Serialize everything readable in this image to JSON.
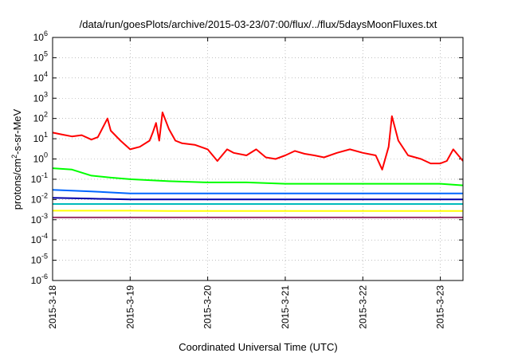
{
  "chart_data": {
    "type": "line",
    "title": "/data/run/goesPlots/archive/2015-03-23/07:00/flux/../flux/5daysMoonFluxes.txt",
    "xlabel": "Coordinated Universal Time (UTC)",
    "ylabel": {
      "pre": "protons/cm",
      "sup": "2",
      "post": "-s-sr-MeV"
    },
    "yscale": "log",
    "ylim": [
      1e-06,
      1000000.0
    ],
    "xlim": [
      "2015-03-18T00:00",
      "2015-03-23T07:00"
    ],
    "grid": true,
    "x_ticks": [
      "2015-3-18",
      "2015-3-19",
      "2015-3-20",
      "2015-3-21",
      "2015-3-22",
      "2015-3-23"
    ],
    "y_ticks": [
      {
        "base": "10",
        "exp": "6"
      },
      {
        "base": "10",
        "exp": "5"
      },
      {
        "base": "10",
        "exp": "4"
      },
      {
        "base": "10",
        "exp": "3"
      },
      {
        "base": "10",
        "exp": "2"
      },
      {
        "base": "10",
        "exp": "1"
      },
      {
        "base": "10",
        "exp": "0"
      },
      {
        "base": "10",
        "exp": "-1"
      },
      {
        "base": "10",
        "exp": "-2"
      },
      {
        "base": "10",
        "exp": "-3"
      },
      {
        "base": "10",
        "exp": "-4"
      },
      {
        "base": "10",
        "exp": "-5"
      },
      {
        "base": "10",
        "exp": "-6"
      }
    ],
    "series": [
      {
        "color": "#ff0000",
        "x": [
          "2015-03-18T00:00",
          "2015-03-18T03:00",
          "2015-03-18T06:00",
          "2015-03-18T09:00",
          "2015-03-18T12:00",
          "2015-03-18T14:00",
          "2015-03-18T17:00",
          "2015-03-18T18:00",
          "2015-03-18T21:00",
          "2015-03-19T00:00",
          "2015-03-19T03:00",
          "2015-03-19T06:00",
          "2015-03-19T07:00",
          "2015-03-19T08:00",
          "2015-03-19T09:00",
          "2015-03-19T10:00",
          "2015-03-19T12:00",
          "2015-03-19T14:00",
          "2015-03-19T16:00",
          "2015-03-19T20:00",
          "2015-03-20T00:00",
          "2015-03-20T03:00",
          "2015-03-20T06:00",
          "2015-03-20T08:00",
          "2015-03-20T12:00",
          "2015-03-20T15:00",
          "2015-03-20T18:00",
          "2015-03-20T21:00",
          "2015-03-21T00:00",
          "2015-03-21T03:00",
          "2015-03-21T06:00",
          "2015-03-21T09:00",
          "2015-03-21T12:00",
          "2015-03-21T16:00",
          "2015-03-21T20:00",
          "2015-03-22T00:00",
          "2015-03-22T04:00",
          "2015-03-22T06:00",
          "2015-03-22T08:00",
          "2015-03-22T09:00",
          "2015-03-22T11:00",
          "2015-03-22T14:00",
          "2015-03-22T18:00",
          "2015-03-22T21:00",
          "2015-03-23T00:00",
          "2015-03-23T02:00",
          "2015-03-23T04:00",
          "2015-03-23T07:00"
        ],
        "y": [
          20,
          16,
          13,
          15,
          9,
          12,
          100,
          25,
          8,
          3,
          4,
          8,
          20,
          60,
          8,
          200,
          30,
          8,
          6,
          5,
          3,
          0.8,
          3,
          2,
          1.5,
          3,
          1.2,
          1.0,
          1.5,
          2.5,
          1.8,
          1.5,
          1.2,
          2.0,
          3.0,
          2.0,
          1.5,
          0.3,
          4,
          130,
          8,
          1.5,
          1.0,
          0.6,
          0.6,
          0.8,
          3,
          0.8
        ]
      },
      {
        "color": "#00ff00",
        "x": [
          "2015-03-18T00:00",
          "2015-03-18T06:00",
          "2015-03-18T12:00",
          "2015-03-18T18:00",
          "2015-03-19T00:00",
          "2015-03-19T12:00",
          "2015-03-20T00:00",
          "2015-03-20T12:00",
          "2015-03-21T00:00",
          "2015-03-21T12:00",
          "2015-03-22T00:00",
          "2015-03-22T12:00",
          "2015-03-23T00:00",
          "2015-03-23T07:00"
        ],
        "y": [
          0.35,
          0.3,
          0.15,
          0.12,
          0.1,
          0.08,
          0.07,
          0.07,
          0.06,
          0.06,
          0.06,
          0.06,
          0.06,
          0.05
        ]
      },
      {
        "color": "#0066ff",
        "x": [
          "2015-03-18T00:00",
          "2015-03-18T12:00",
          "2015-03-19T00:00",
          "2015-03-19T12:00",
          "2015-03-20T00:00",
          "2015-03-20T12:00",
          "2015-03-21T00:00",
          "2015-03-21T12:00",
          "2015-03-22T00:00",
          "2015-03-22T12:00",
          "2015-03-23T00:00",
          "2015-03-23T07:00"
        ],
        "y": [
          0.03,
          0.025,
          0.02,
          0.02,
          0.02,
          0.02,
          0.02,
          0.02,
          0.02,
          0.02,
          0.02,
          0.02
        ]
      },
      {
        "color": "#0000aa",
        "x": [
          "2015-03-18T00:00",
          "2015-03-18T12:00",
          "2015-03-19T00:00",
          "2015-03-19T12:00",
          "2015-03-20T00:00",
          "2015-03-20T12:00",
          "2015-03-21T00:00",
          "2015-03-21T12:00",
          "2015-03-22T00:00",
          "2015-03-22T12:00",
          "2015-03-23T00:00",
          "2015-03-23T07:00"
        ],
        "y": [
          0.012,
          0.011,
          0.01,
          0.01,
          0.01,
          0.01,
          0.01,
          0.01,
          0.01,
          0.01,
          0.01,
          0.01
        ]
      },
      {
        "color": "#00bbbb",
        "x": [
          "2015-03-18T00:00",
          "2015-03-18T12:00",
          "2015-03-19T00:00",
          "2015-03-19T12:00",
          "2015-03-20T00:00",
          "2015-03-20T12:00",
          "2015-03-21T00:00",
          "2015-03-21T12:00",
          "2015-03-22T00:00",
          "2015-03-22T12:00",
          "2015-03-23T00:00",
          "2015-03-23T07:00"
        ],
        "y": [
          0.006,
          0.006,
          0.006,
          0.006,
          0.006,
          0.006,
          0.006,
          0.006,
          0.006,
          0.006,
          0.006,
          0.006
        ]
      },
      {
        "color": "#ffff00",
        "x": [
          "2015-03-18T00:00",
          "2015-03-18T12:00",
          "2015-03-19T00:00",
          "2015-03-19T12:00",
          "2015-03-20T00:00",
          "2015-03-20T12:00",
          "2015-03-21T00:00",
          "2015-03-21T12:00",
          "2015-03-22T00:00",
          "2015-03-22T12:00",
          "2015-03-23T00:00",
          "2015-03-23T07:00"
        ],
        "y": [
          0.0028,
          0.0028,
          0.0028,
          0.0027,
          0.0027,
          0.0027,
          0.0027,
          0.0027,
          0.0027,
          0.0027,
          0.0027,
          0.0027
        ]
      },
      {
        "color": "#993366",
        "x": [
          "2015-03-18T00:00",
          "2015-03-18T12:00",
          "2015-03-19T00:00",
          "2015-03-19T12:00",
          "2015-03-20T00:00",
          "2015-03-20T12:00",
          "2015-03-21T00:00",
          "2015-03-21T12:00",
          "2015-03-22T00:00",
          "2015-03-22T12:00",
          "2015-03-23T00:00",
          "2015-03-23T07:00"
        ],
        "y": [
          0.0013,
          0.0013,
          0.0013,
          0.0013,
          0.0013,
          0.0013,
          0.0013,
          0.0013,
          0.0013,
          0.0013,
          0.0013,
          0.0013
        ]
      }
    ]
  }
}
